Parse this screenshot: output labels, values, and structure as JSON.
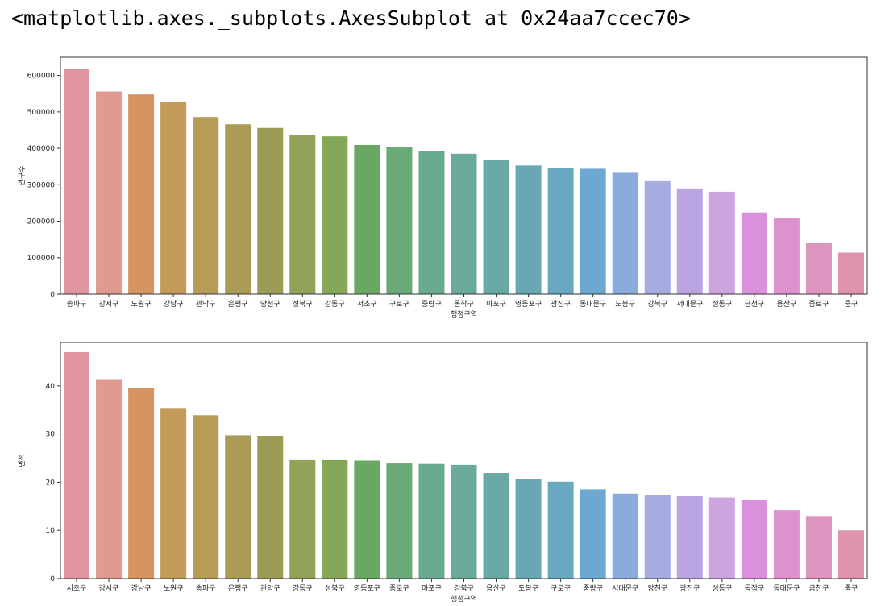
{
  "output_header": "<matplotlib.axes._subplots.AxesSubplot at 0x24aa7ccec70>",
  "chart_data": [
    {
      "type": "bar",
      "xlabel": "행정구역",
      "ylabel": "인구수",
      "ylim": [
        0,
        650000
      ],
      "yticks": [
        0,
        100000,
        200000,
        300000,
        400000,
        500000,
        600000
      ],
      "grid": false,
      "categories": [
        "송파구",
        "강서구",
        "노원구",
        "강남구",
        "관악구",
        "은평구",
        "양천구",
        "성북구",
        "강동구",
        "서초구",
        "구로구",
        "중랑구",
        "동작구",
        "마포구",
        "영등포구",
        "광진구",
        "동대문구",
        "도봉구",
        "강북구",
        "서대문구",
        "성동구",
        "금천구",
        "용산구",
        "종로구",
        "중구"
      ],
      "values": [
        617000,
        556000,
        548000,
        527000,
        486000,
        466000,
        456000,
        436000,
        433000,
        409000,
        403000,
        393000,
        385000,
        367000,
        353000,
        345000,
        344000,
        333000,
        312000,
        290000,
        281000,
        224000,
        208000,
        140000,
        114000
      ]
    },
    {
      "type": "bar",
      "xlabel": "행정구역",
      "ylabel": "면적",
      "ylim": [
        0,
        49
      ],
      "yticks": [
        0,
        10,
        20,
        30,
        40
      ],
      "grid": false,
      "categories": [
        "서초구",
        "강서구",
        "강남구",
        "노원구",
        "송파구",
        "은평구",
        "관악구",
        "강동구",
        "성북구",
        "영등포구",
        "종로구",
        "마포구",
        "강북구",
        "용산구",
        "도봉구",
        "구로구",
        "중랑구",
        "서대문구",
        "양천구",
        "광진구",
        "성동구",
        "동작구",
        "동대문구",
        "금천구",
        "중구"
      ],
      "values": [
        47.0,
        41.4,
        39.5,
        35.4,
        33.9,
        29.7,
        29.6,
        24.6,
        24.6,
        24.5,
        23.9,
        23.8,
        23.6,
        21.9,
        20.7,
        20.1,
        18.5,
        17.6,
        17.4,
        17.1,
        16.8,
        16.3,
        14.2,
        13.0,
        10.0
      ]
    }
  ],
  "palette": [
    "#e1969f",
    "#e09a8f",
    "#d69560",
    "#c49a58",
    "#b79c58",
    "#aa9b57",
    "#9c9c57",
    "#90a359",
    "#85a858",
    "#69a862",
    "#6aaa79",
    "#6aab8f",
    "#69aa9b",
    "#68a9a6",
    "#69a8b2",
    "#6aa7c0",
    "#6da8d3",
    "#8aacdd",
    "#a6abe2",
    "#baa4e1",
    "#cda3e0",
    "#db90dd",
    "#dd92ce",
    "#dd94be",
    "#df94ad"
  ]
}
